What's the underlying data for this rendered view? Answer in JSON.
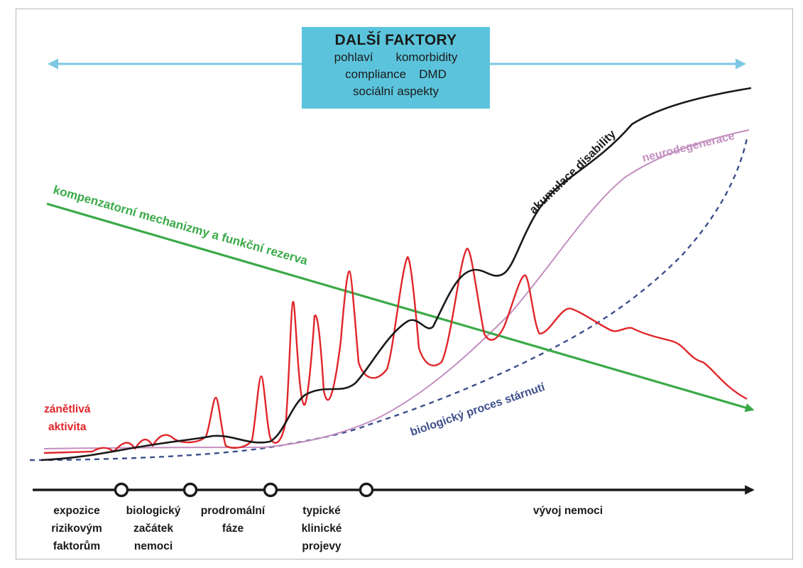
{
  "factors": {
    "title": "DALŠÍ FAKTORY",
    "items": [
      "pohlaví",
      "komorbidity",
      "compliance",
      "DMD",
      "sociální aspekty"
    ]
  },
  "curves": {
    "compensation": "kompenzatorní mechanizmy a funkční rezerva",
    "disability": "akumulace disability",
    "neurodegeneration": "neurodegenerace",
    "aging": "biologický proces stárnutí",
    "inflammation": [
      "zánětlivá",
      "aktivita"
    ]
  },
  "stages": [
    [
      "expozice",
      "rizikovým",
      "faktorům"
    ],
    [
      "biologický",
      "začátek",
      "nemoci"
    ],
    [
      "prodromální",
      "fáze"
    ],
    [
      "typické",
      "klinické",
      "projevy"
    ],
    [
      "vývoj nemoci"
    ]
  ],
  "colors": {
    "compensation": "#3aaa48",
    "disability": "#1a1a1a",
    "neurodegeneration": "#c48fc0",
    "aging": "#3d4f8c",
    "inflammation": "#e0262b",
    "factors_box": "#5bc4dc",
    "factors_arrow": "#7cc8e4"
  }
}
